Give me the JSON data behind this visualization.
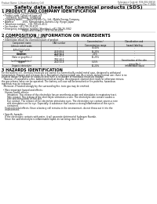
{
  "background_color": "#ffffff",
  "header_left": "Product Name: Lithium Ion Battery Cell",
  "header_right_line1": "Substance Control: SDS-001-00010",
  "header_right_line2": "Established / Revision: Dec.7.2016",
  "title": "Safety data sheet for chemical products (SDS)",
  "section1_title": "1 PRODUCT AND COMPANY IDENTIFICATION",
  "section1_items": [
    "  • Product name: Lithium Ion Battery Cell",
    "  • Product code: Cylindrical-type cell",
    "       SV18650J, SV18650L, SV18650A",
    "  • Company name:      Sanyo Electric Co., Ltd., Mobile Energy Company",
    "  • Address:            2001, Kamashinden, Sumoto-City, Hyogo, Japan",
    "  • Telephone number:   +81-799-26-4111",
    "  • Fax number: +81-799-26-4121",
    "  • Emergency telephone number (Weekday): +81-799-26-3662",
    "                              (Night and holiday): +81-799-26-4101"
  ],
  "section2_title": "2 COMPOSITION / INFORMATION ON INGREDIENTS",
  "section2_subtitle": "  • Substance or preparation: Preparation",
  "section2_subsub": "  • Information about the chemical nature of product",
  "table_headers": [
    "Component name",
    "CAS number",
    "Concentration /\nConcentration range",
    "Classification and\nhazard labeling"
  ],
  "table_rows": [
    [
      "Lithium cobalt oxide\n(LiMnO2/LiCoO2)",
      "-",
      "30-40%",
      "-"
    ],
    [
      "Iron",
      "7439-89-6",
      "15-25%",
      "-"
    ],
    [
      "Aluminum",
      "7429-90-5",
      "2-6%",
      "-"
    ],
    [
      "Graphite\n(flake or graphite-i)\n(artificial graphite-i)",
      "7782-42-5\n7782-44-2",
      "10-25%",
      "-"
    ],
    [
      "Copper",
      "7440-50-8",
      "5-15%",
      "Sensitization of the skin\ngroup No.2"
    ],
    [
      "Organic electrolyte",
      "-",
      "10-20%",
      "Inflammable liquid"
    ]
  ],
  "col_positions": [
    3,
    52,
    98,
    145,
    197
  ],
  "section3_title": "3 HAZARDS IDENTIFICATION",
  "section3_text": [
    "For the battery cell, chemical materials are stored in a hermetically-sealed metal case, designed to withstand",
    "temperature changes and pressure-force-fluctuations during normal use. As a result, during normal use, there is no",
    "physical danger of ignition or explosion and there is no danger of hazardous materials leakage.",
    "   However, if exposed to a fire, added mechanical shocks, decomposed, shorted electrically or otherwise misuse,",
    "the gas release valve can be operated. The battery cell case will be breached or fire-patterns, hazardous",
    "materials may be released.",
    "   Moreover, if heated strongly by the surrounding fire, toxic gas may be emitted.",
    "",
    "  • Most important hazard and effects:",
    "     Human health effects:",
    "        Inhalation: The release of the electrolyte has an anesthesia action and stimulates in respiratory tract.",
    "        Skin contact: The release of the electrolyte stimulates a skin. The electrolyte skin contact causes a",
    "        sore and stimulation on the skin.",
    "        Eye contact: The release of the electrolyte stimulates eyes. The electrolyte eye contact causes a sore",
    "        and stimulation on the eye. Especially, a substance that causes a strong inflammation of the eye is",
    "        contained.",
    "     Environmental effects: Since a battery cell remains in the environment, do not throw out it into the",
    "     environment.",
    "",
    "  • Specific hazards:",
    "     If the electrolyte contacts with water, it will generate detrimental hydrogen fluoride.",
    "     Since the said electrolyte is inflammable liquid, do not bring close to fire."
  ]
}
